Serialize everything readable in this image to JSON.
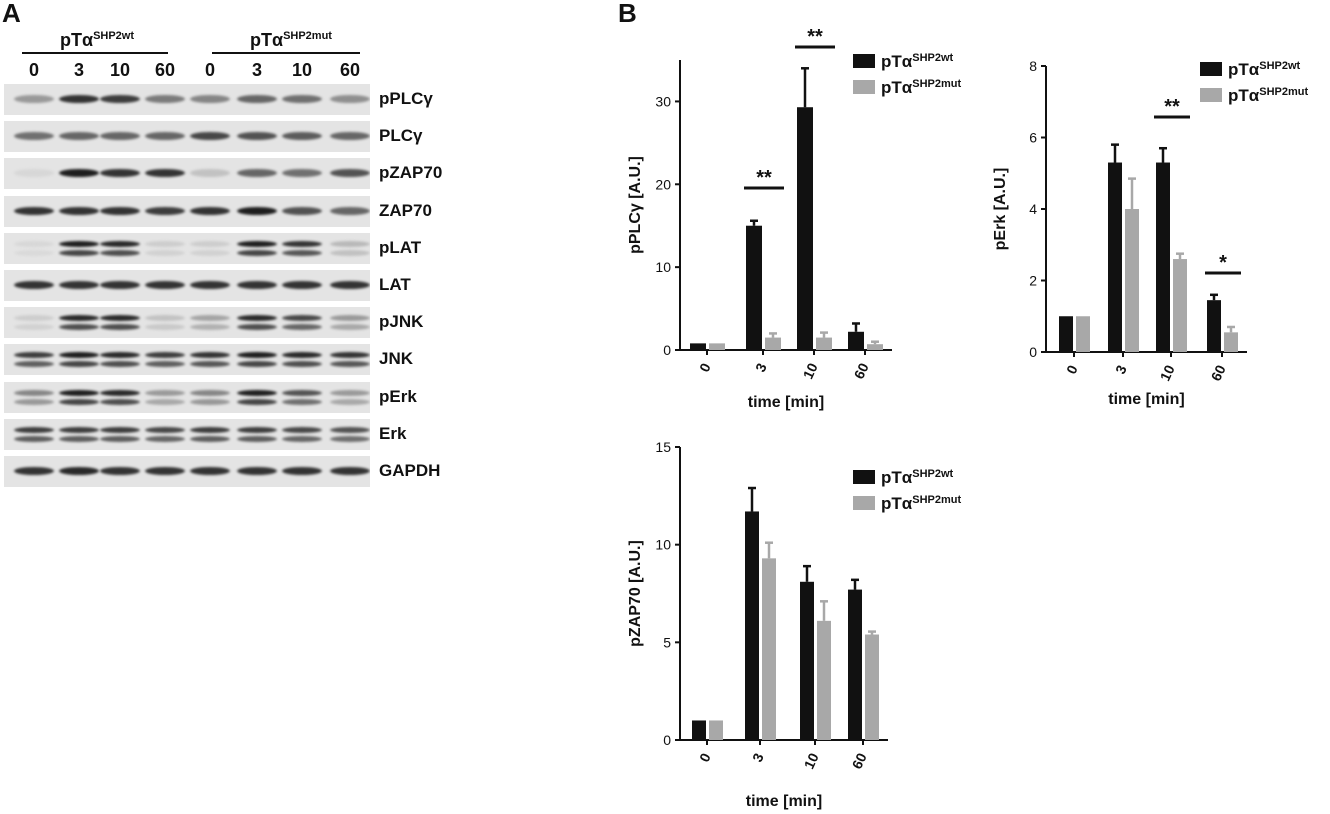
{
  "panels": {
    "a": "A",
    "b": "B"
  },
  "blot": {
    "groups": [
      {
        "prefix": "pTα",
        "sup": "SHP2wt"
      },
      {
        "prefix": "pTα",
        "sup": "SHP2mut"
      }
    ],
    "lanes": [
      "0",
      "3",
      "10",
      "60",
      "0",
      "3",
      "10",
      "60"
    ],
    "rows": [
      {
        "label": "pPLCγ",
        "intensity": [
          0.35,
          0.85,
          0.8,
          0.5,
          0.45,
          0.6,
          0.55,
          0.4
        ],
        "double": false
      },
      {
        "label": "PLCγ",
        "intensity": [
          0.55,
          0.6,
          0.6,
          0.6,
          0.75,
          0.7,
          0.65,
          0.6
        ],
        "double": false
      },
      {
        "label": "pZAP70",
        "intensity": [
          0.05,
          0.95,
          0.85,
          0.85,
          0.15,
          0.6,
          0.55,
          0.7
        ],
        "double": false
      },
      {
        "label": "ZAP70",
        "intensity": [
          0.85,
          0.85,
          0.85,
          0.8,
          0.85,
          0.95,
          0.7,
          0.6
        ],
        "double": false
      },
      {
        "label": "pLAT",
        "intensity": [
          0.05,
          0.95,
          0.9,
          0.1,
          0.1,
          0.95,
          0.85,
          0.2
        ],
        "double": true
      },
      {
        "label": "LAT",
        "intensity": [
          0.85,
          0.85,
          0.85,
          0.85,
          0.85,
          0.85,
          0.85,
          0.85
        ],
        "double": false
      },
      {
        "label": "pJNK",
        "intensity": [
          0.1,
          0.9,
          0.9,
          0.15,
          0.3,
          0.9,
          0.75,
          0.35
        ],
        "double": true
      },
      {
        "label": "JNK",
        "intensity": [
          0.8,
          0.95,
          0.9,
          0.8,
          0.85,
          0.95,
          0.9,
          0.85
        ],
        "double": true
      },
      {
        "label": "pErk",
        "intensity": [
          0.45,
          0.95,
          0.9,
          0.35,
          0.45,
          0.95,
          0.7,
          0.35
        ],
        "double": true
      },
      {
        "label": "Erk",
        "intensity": [
          0.8,
          0.8,
          0.8,
          0.75,
          0.8,
          0.8,
          0.75,
          0.7
        ],
        "double": true
      },
      {
        "label": "GAPDH",
        "intensity": [
          0.85,
          0.9,
          0.85,
          0.85,
          0.85,
          0.85,
          0.85,
          0.85
        ],
        "double": false
      }
    ]
  },
  "chart_data": [
    {
      "type": "bar",
      "xlabel": "time [min]",
      "ylabel": "pPLCγ [A.U.]",
      "categories": [
        "0",
        "3",
        "10",
        "60"
      ],
      "ylim": [
        0,
        35
      ],
      "yticks": [
        0,
        10,
        20,
        30
      ],
      "series": [
        {
          "name_prefix": "pTα",
          "name_sup": "SHP2wt",
          "color": "#111111",
          "values": [
            0.8,
            15.0,
            29.3,
            2.2
          ],
          "errors": [
            0,
            0.6,
            4.7,
            1.0
          ]
        },
        {
          "name_prefix": "pTα",
          "name_sup": "SHP2mut",
          "color": "#a8a8a8",
          "values": [
            0.8,
            1.5,
            1.5,
            0.7
          ],
          "errors": [
            0,
            0.5,
            0.6,
            0.3
          ]
        }
      ],
      "significance": [
        {
          "category": "3",
          "label": "**"
        },
        {
          "category": "10",
          "label": "**"
        }
      ]
    },
    {
      "type": "bar",
      "xlabel": "time [min]",
      "ylabel": "pErk [A.U.]",
      "categories": [
        "0",
        "3",
        "10",
        "60"
      ],
      "ylim": [
        0,
        8
      ],
      "yticks": [
        0,
        2,
        4,
        6,
        8
      ],
      "series": [
        {
          "name_prefix": "pTα",
          "name_sup": "SHP2wt",
          "color": "#111111",
          "values": [
            1.0,
            5.3,
            5.3,
            1.45
          ],
          "errors": [
            0,
            0.5,
            0.4,
            0.15
          ]
        },
        {
          "name_prefix": "pTα",
          "name_sup": "SHP2mut",
          "color": "#a8a8a8",
          "values": [
            1.0,
            4.0,
            2.6,
            0.55
          ],
          "errors": [
            0,
            0.85,
            0.15,
            0.15
          ]
        }
      ],
      "significance": [
        {
          "category": "10",
          "label": "**"
        },
        {
          "category": "60",
          "label": "*"
        }
      ]
    },
    {
      "type": "bar",
      "xlabel": "time [min]",
      "ylabel": "pZAP70 [A.U.]",
      "categories": [
        "0",
        "3",
        "10",
        "60"
      ],
      "ylim": [
        0,
        15
      ],
      "yticks": [
        0,
        5,
        10,
        15
      ],
      "series": [
        {
          "name_prefix": "pTα",
          "name_sup": "SHP2wt",
          "color": "#111111",
          "values": [
            1.0,
            11.7,
            8.1,
            7.7
          ],
          "errors": [
            0,
            1.2,
            0.8,
            0.5
          ]
        },
        {
          "name_prefix": "pTα",
          "name_sup": "SHP2mut",
          "color": "#a8a8a8",
          "values": [
            1.0,
            9.3,
            6.1,
            5.4
          ],
          "errors": [
            0,
            0.8,
            1.0,
            0.15
          ]
        }
      ],
      "significance": []
    }
  ]
}
